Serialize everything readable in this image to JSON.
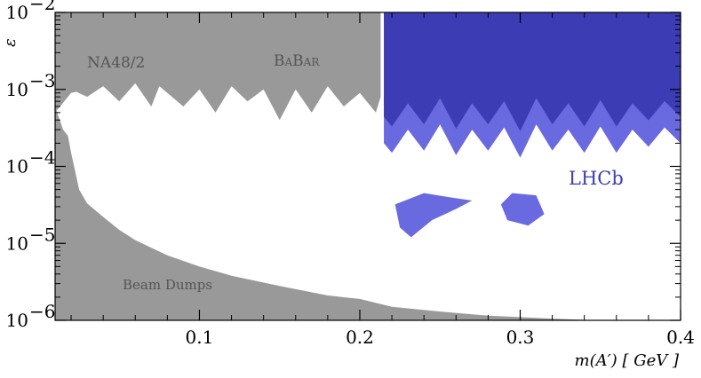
{
  "chart_data": {
    "type": "area",
    "xlabel": "m(A′) [ GeV ]",
    "ylabel": "ε",
    "xlim": [
      0.01,
      0.4
    ],
    "ylim": [
      1e-06,
      0.01
    ],
    "yscale": "log",
    "grid": false,
    "x_ticks": [
      {
        "value": 0.1,
        "label": "0.1"
      },
      {
        "value": 0.2,
        "label": "0.2"
      },
      {
        "value": 0.3,
        "label": "0.3"
      },
      {
        "value": 0.4,
        "label": "0.4"
      }
    ],
    "y_ticks": [
      {
        "value": 1e-06,
        "mant": "10",
        "exp": "−6"
      },
      {
        "value": 1e-05,
        "mant": "10",
        "exp": "−5"
      },
      {
        "value": 0.0001,
        "mant": "10",
        "exp": "−4"
      },
      {
        "value": 0.001,
        "mant": "10",
        "exp": "−3"
      },
      {
        "value": 0.01,
        "mant": "10",
        "exp": "−2"
      }
    ],
    "labels": {
      "na48": "NA48/2",
      "babar": "BaBar",
      "beam_dumps": "Beam Dumps",
      "lhcb": "LHCb"
    },
    "colors": {
      "excluded_gray": "#999999",
      "lhcb_dark": "#3c3cb4",
      "lhcb_light": "#6a6ae0"
    },
    "series": [
      {
        "name": "NA48/2",
        "points": [
          [
            0.01,
            0.0005
          ],
          [
            0.02,
            0.0009
          ],
          [
            0.03,
            0.001
          ],
          [
            0.04,
            0.0011
          ],
          [
            0.05,
            0.00115
          ],
          [
            0.06,
            0.0012
          ],
          [
            0.07,
            0.00125
          ],
          [
            0.08,
            0.0013
          ],
          [
            0.09,
            0.00135
          ],
          [
            0.1,
            0.0014
          ],
          [
            0.11,
            0.00145
          ],
          [
            0.12,
            0.0015
          ],
          [
            0.13,
            0.00155
          ]
        ]
      },
      {
        "name": "BaBar",
        "points": [
          [
            0.02,
            0.001
          ],
          [
            0.03,
            0.0008
          ],
          [
            0.04,
            0.0011
          ],
          [
            0.05,
            0.0007
          ],
          [
            0.06,
            0.0012
          ],
          [
            0.07,
            0.0006
          ],
          [
            0.075,
            0.0011
          ],
          [
            0.08,
            0.0009
          ],
          [
            0.09,
            0.0006
          ],
          [
            0.1,
            0.001
          ],
          [
            0.11,
            0.0005
          ],
          [
            0.12,
            0.0011
          ],
          [
            0.13,
            0.0007
          ],
          [
            0.14,
            0.001
          ],
          [
            0.15,
            0.0004
          ],
          [
            0.16,
            0.001
          ],
          [
            0.17,
            0.0005
          ],
          [
            0.18,
            0.0011
          ],
          [
            0.19,
            0.0006
          ],
          [
            0.2,
            0.0009
          ],
          [
            0.21,
            0.0005
          ],
          [
            0.213,
            0.0008
          ]
        ]
      },
      {
        "name": "Beam Dumps",
        "points": [
          [
            0.01,
            0.0006
          ],
          [
            0.015,
            0.0003
          ],
          [
            0.018,
            0.00025
          ],
          [
            0.02,
            0.00015
          ],
          [
            0.025,
            5e-05
          ],
          [
            0.03,
            3.3e-05
          ],
          [
            0.04,
            2.2e-05
          ],
          [
            0.05,
            1.5e-05
          ],
          [
            0.06,
            1.1e-05
          ],
          [
            0.08,
            7e-06
          ],
          [
            0.1,
            5e-06
          ],
          [
            0.12,
            3.8e-06
          ],
          [
            0.15,
            2.8e-06
          ],
          [
            0.18,
            2.1e-06
          ],
          [
            0.2,
            1.9e-06
          ],
          [
            0.22,
            1.5e-06
          ],
          [
            0.25,
            1.3e-06
          ],
          [
            0.28,
            1.15e-06
          ],
          [
            0.3,
            1.1e-06
          ],
          [
            0.32,
            1.05e-06
          ],
          [
            0.35,
            1e-06
          ],
          [
            0.4,
            1e-06
          ]
        ]
      },
      {
        "name": "LHCb",
        "points": [
          [
            0.215,
            0.0002
          ],
          [
            0.22,
            0.00015
          ],
          [
            0.23,
            0.0003
          ],
          [
            0.24,
            0.00016
          ],
          [
            0.25,
            0.00035
          ],
          [
            0.26,
            0.00014
          ],
          [
            0.27,
            0.0003
          ],
          [
            0.28,
            0.00016
          ],
          [
            0.29,
            0.00032
          ],
          [
            0.3,
            0.00013
          ],
          [
            0.31,
            0.00035
          ],
          [
            0.32,
            0.00016
          ],
          [
            0.33,
            0.0003
          ],
          [
            0.34,
            0.00015
          ],
          [
            0.35,
            0.00033
          ],
          [
            0.36,
            0.00015
          ],
          [
            0.37,
            0.0003
          ],
          [
            0.38,
            0.00018
          ],
          [
            0.39,
            0.00032
          ],
          [
            0.4,
            0.0002
          ]
        ]
      },
      {
        "name": "LHCb",
        "points": [
          [
            0.222,
            3.2e-05
          ],
          [
            0.24,
            4.5e-05
          ],
          [
            0.255,
            4e-05
          ],
          [
            0.27,
            3.6e-05
          ],
          [
            0.26,
            2.8e-05
          ],
          [
            0.245,
            2e-05
          ],
          [
            0.232,
            1.2e-05
          ],
          [
            0.225,
            1.6e-05
          ]
        ]
      },
      {
        "name": "LHCb",
        "points": [
          [
            0.295,
            4.5e-05
          ],
          [
            0.31,
            4.2e-05
          ],
          [
            0.315,
            2.4e-05
          ],
          [
            0.305,
            1.7e-05
          ],
          [
            0.292,
            2e-05
          ],
          [
            0.288,
            3.2e-05
          ]
        ]
      }
    ]
  }
}
